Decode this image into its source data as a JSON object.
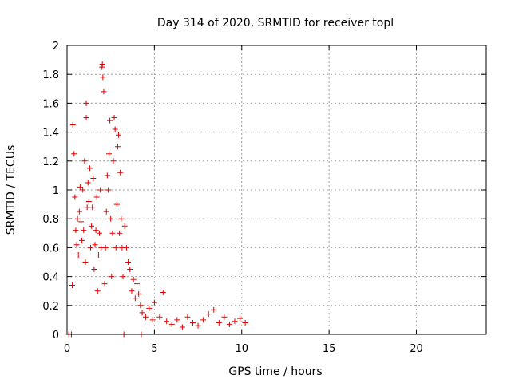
{
  "chart_data": {
    "type": "scatter",
    "title": "Day 314 of 2020, SRMTID for receiver topl",
    "xlabel": "GPS time / hours",
    "ylabel": "SRMTID / TECUs",
    "xlim": [
      0,
      24
    ],
    "ylim": [
      0,
      2
    ],
    "x_ticks": [
      0,
      5,
      10,
      15,
      20
    ],
    "x_tick_labels": [
      "0",
      "5",
      "10",
      "15",
      "20"
    ],
    "y_ticks": [
      0,
      0.2,
      0.4,
      0.6,
      0.8,
      1,
      1.2,
      1.4,
      1.6,
      1.8,
      2
    ],
    "y_tick_labels": [
      "0",
      "0.2",
      "0.4",
      "0.6",
      "0.8",
      "1",
      "1.2",
      "1.4",
      "1.6",
      "1.8",
      "2"
    ],
    "grid": true,
    "marker": "+",
    "color": "#e00000",
    "series": [
      {
        "name": "SRMTID",
        "points": [
          [
            0.1,
            0.0
          ],
          [
            0.25,
            0.0
          ],
          [
            3.25,
            0.0
          ],
          [
            4.25,
            0.0
          ],
          [
            0.3,
            0.34
          ],
          [
            0.33,
            1.45
          ],
          [
            0.4,
            1.25
          ],
          [
            0.45,
            0.95
          ],
          [
            0.5,
            0.72
          ],
          [
            0.55,
            0.62
          ],
          [
            0.6,
            0.8
          ],
          [
            0.65,
            0.55
          ],
          [
            0.7,
            0.85
          ],
          [
            0.75,
            1.02
          ],
          [
            0.8,
            0.78
          ],
          [
            0.85,
            0.65
          ],
          [
            0.9,
            1.0
          ],
          [
            0.95,
            0.72
          ],
          [
            1.0,
            1.2
          ],
          [
            1.05,
            0.5
          ],
          [
            1.1,
            1.5
          ],
          [
            1.1,
            1.6
          ],
          [
            1.15,
            0.88
          ],
          [
            1.2,
            1.05
          ],
          [
            1.25,
            0.92
          ],
          [
            1.3,
            1.15
          ],
          [
            1.35,
            0.6
          ],
          [
            1.4,
            0.75
          ],
          [
            1.45,
            0.88
          ],
          [
            1.5,
            1.08
          ],
          [
            1.55,
            0.45
          ],
          [
            1.6,
            0.62
          ],
          [
            1.65,
            0.72
          ],
          [
            1.7,
            0.95
          ],
          [
            1.75,
            0.3
          ],
          [
            1.8,
            0.55
          ],
          [
            1.85,
            0.7
          ],
          [
            1.9,
            1.0
          ],
          [
            1.95,
            0.6
          ],
          [
            2.0,
            1.85
          ],
          [
            2.02,
            1.87
          ],
          [
            2.05,
            1.78
          ],
          [
            2.1,
            1.68
          ],
          [
            2.15,
            0.35
          ],
          [
            2.2,
            0.6
          ],
          [
            2.25,
            0.85
          ],
          [
            2.3,
            1.1
          ],
          [
            2.35,
            1.0
          ],
          [
            2.4,
            1.25
          ],
          [
            2.45,
            1.48
          ],
          [
            2.5,
            0.8
          ],
          [
            2.55,
            0.4
          ],
          [
            2.6,
            0.7
          ],
          [
            2.65,
            1.2
          ],
          [
            2.7,
            1.5
          ],
          [
            2.75,
            1.42
          ],
          [
            2.8,
            0.6
          ],
          [
            2.85,
            0.9
          ],
          [
            2.9,
            1.3
          ],
          [
            2.95,
            1.38
          ],
          [
            3.0,
            0.7
          ],
          [
            3.05,
            1.12
          ],
          [
            3.1,
            0.8
          ],
          [
            3.15,
            0.6
          ],
          [
            3.2,
            0.4
          ],
          [
            3.3,
            0.75
          ],
          [
            3.4,
            0.6
          ],
          [
            3.5,
            0.5
          ],
          [
            3.6,
            0.45
          ],
          [
            3.7,
            0.3
          ],
          [
            3.8,
            0.38
          ],
          [
            3.9,
            0.25
          ],
          [
            4.0,
            0.35
          ],
          [
            4.1,
            0.28
          ],
          [
            4.2,
            0.2
          ],
          [
            4.3,
            0.15
          ],
          [
            4.5,
            0.12
          ],
          [
            4.7,
            0.18
          ],
          [
            4.9,
            0.1
          ],
          [
            5.0,
            0.22
          ],
          [
            5.3,
            0.12
          ],
          [
            5.5,
            0.29
          ],
          [
            5.7,
            0.09
          ],
          [
            6.0,
            0.07
          ],
          [
            6.3,
            0.1
          ],
          [
            6.6,
            0.05
          ],
          [
            6.9,
            0.12
          ],
          [
            7.2,
            0.08
          ],
          [
            7.5,
            0.06
          ],
          [
            7.8,
            0.1
          ],
          [
            8.1,
            0.14
          ],
          [
            8.4,
            0.17
          ],
          [
            8.7,
            0.08
          ],
          [
            9.0,
            0.12
          ],
          [
            9.3,
            0.07
          ],
          [
            9.6,
            0.09
          ],
          [
            9.9,
            0.11
          ],
          [
            10.2,
            0.08
          ]
        ]
      }
    ]
  }
}
